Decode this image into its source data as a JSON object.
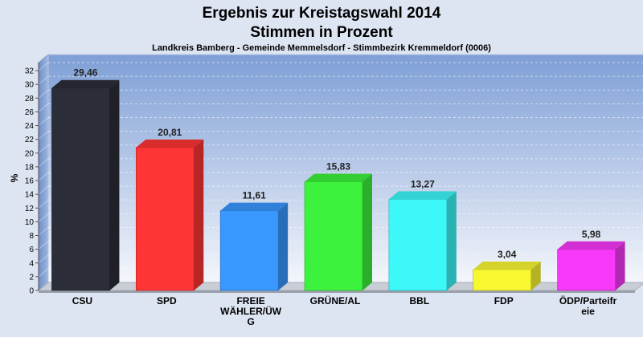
{
  "chart_data": {
    "type": "bar",
    "title": "Ergebnis zur Kreistagswahl 2014",
    "subtitle": "Stimmen in Prozent",
    "caption": "Landkreis Bamberg - Gemeinde Memmelsdorf - Stimmbezirk Kremmeldorf (0006)",
    "xlabel": "",
    "ylabel": "%",
    "ylim": [
      0,
      32
    ],
    "yticks": [
      0,
      2,
      4,
      6,
      8,
      10,
      12,
      14,
      16,
      18,
      20,
      22,
      24,
      26,
      28,
      30,
      32
    ],
    "grid": true,
    "categories": [
      [
        "CSU"
      ],
      [
        "SPD"
      ],
      [
        "FREIE",
        "WÄHLER/ÜW",
        "G"
      ],
      [
        "GRÜNE/AL"
      ],
      [
        "BBL"
      ],
      [
        "FDP"
      ],
      [
        "ÖDP/Parteifr",
        "eie"
      ]
    ],
    "values": [
      29.46,
      20.81,
      11.61,
      15.83,
      13.27,
      3.04,
      5.98
    ],
    "value_labels": [
      "29,46",
      "20,81",
      "11,61",
      "15,83",
      "13,27",
      "3,04",
      "5,98"
    ],
    "colors": [
      "#2b2d38",
      "#ff3434",
      "#3898ff",
      "#3cf23c",
      "#3cf8f8",
      "#f8f830",
      "#f838f8"
    ]
  }
}
